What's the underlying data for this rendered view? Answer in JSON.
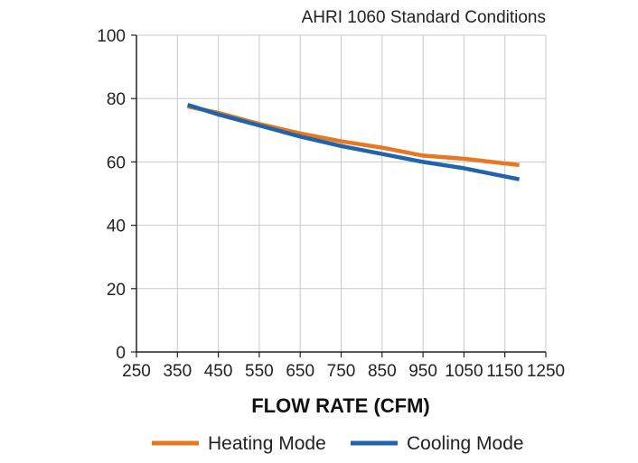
{
  "chart_data": {
    "type": "line",
    "title": "",
    "subtitle": "AHRI 1060 Standard Conditions",
    "xlabel": "FLOW RATE (CFM)",
    "ylabel": "",
    "xlim": [
      250,
      1250
    ],
    "ylim": [
      0,
      100
    ],
    "xticks": [
      250,
      350,
      450,
      550,
      650,
      750,
      850,
      950,
      1050,
      1150,
      1250
    ],
    "yticks": [
      0,
      20,
      40,
      60,
      80,
      100
    ],
    "grid": true,
    "legend_position": "bottom",
    "series": [
      {
        "name": "Heating Mode",
        "color": "#e87722",
        "x": [
          375,
          450,
          550,
          650,
          750,
          850,
          950,
          1050,
          1185
        ],
        "y": [
          77.5,
          75.5,
          72.0,
          69.0,
          66.5,
          64.5,
          62.0,
          61.0,
          59.0
        ]
      },
      {
        "name": "Cooling Mode",
        "color": "#1f64ad",
        "x": [
          375,
          450,
          550,
          650,
          750,
          850,
          950,
          1050,
          1185
        ],
        "y": [
          78.0,
          75.0,
          71.5,
          68.0,
          65.0,
          62.5,
          60.0,
          58.0,
          54.5
        ]
      }
    ]
  }
}
